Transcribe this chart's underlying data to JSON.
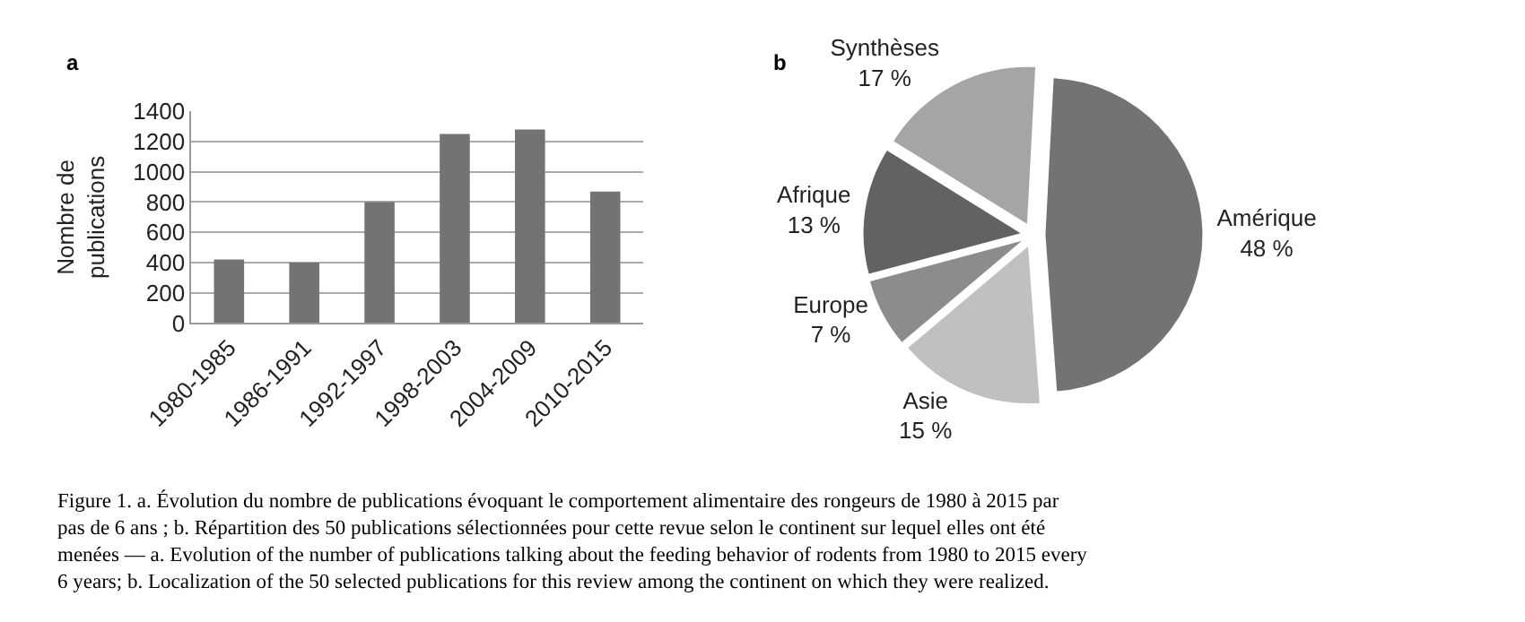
{
  "chart_data": [
    {
      "type": "bar",
      "ylabel": "Nombre de\npublications",
      "categories": [
        "1980-1985",
        "1986-1991",
        "1992-1997",
        "1998-2003",
        "2004-2009",
        "2010-2015"
      ],
      "values": [
        420,
        400,
        800,
        1250,
        1280,
        870
      ],
      "color": "#737373",
      "ylim": [
        0,
        1400
      ],
      "yticks": [
        0,
        200,
        400,
        600,
        800,
        1000,
        1200,
        1400
      ],
      "grid": "y",
      "annotations": [
        "a",
        "Figure 1. a. Évolution du nombre de publications évoquant le comportement alimentaire des rongeurs de 1980 à 2015 par\npas de 6 ans ; b. Répartition des 50 publications sélectionnées pour cette revue selon le continent sur lequel elles ont été\nmenées — a. Evolution of the number of publications talking about the feeding behavior of rodents from 1980 to 2015 every\n6 years; b. Localization of the 50 selected publications for this review among the continent on which they were realized."
      ]
    },
    {
      "type": "pie",
      "categories": [
        "Amérique",
        "Asie",
        "Europe",
        "Afrique",
        "Synthèses"
      ],
      "values": [
        48,
        15,
        7,
        13,
        17
      ],
      "colors": [
        "#737373",
        "#c0c0c0",
        "#8c8c8c",
        "#626262",
        "#a5a5a5"
      ],
      "value_labels": [
        "48 %",
        "15 %",
        "7 %",
        "13 %",
        "17 %"
      ],
      "annotations": [
        "b"
      ]
    }
  ]
}
